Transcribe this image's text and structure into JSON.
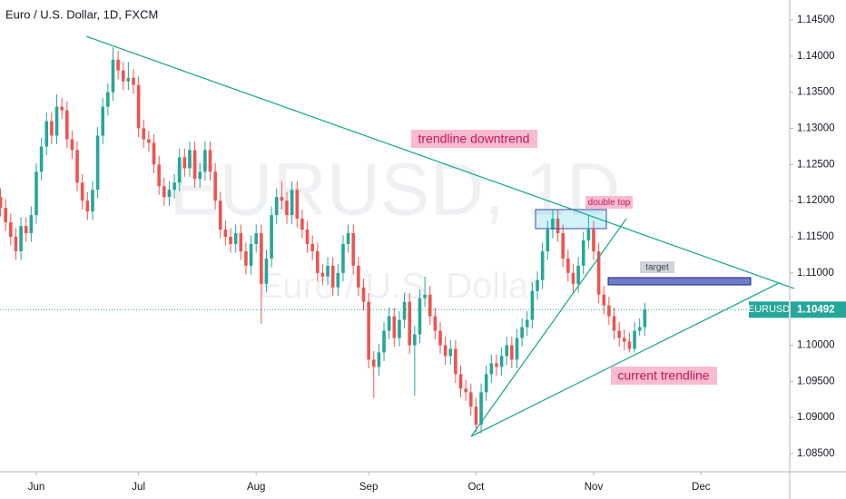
{
  "chart_data": {
    "type": "candlestick",
    "title": "Euro / U.S. Dollar, 1D, FXCM",
    "watermark": "EURUSD, 1D",
    "watermark_subtitle": "Euro / U.S. Dollar",
    "annotations": [
      "trendline downtrend",
      "double top",
      "target",
      "current trendline"
    ],
    "symbol": "EURUSD",
    "current_price": 1.10492,
    "up_color": "#26a69a",
    "down_color": "#ef5350",
    "grid": false,
    "xlim": [
      -0.1,
      154.35
    ],
    "xticks": [
      {
        "value": 7,
        "label": "Jun"
      },
      {
        "value": 27,
        "label": "Jul"
      },
      {
        "value": 50,
        "label": "Aug"
      },
      {
        "value": 72,
        "label": "Sep"
      },
      {
        "value": 93,
        "label": "Oct"
      },
      {
        "value": 116,
        "label": "Nov"
      },
      {
        "value": 137,
        "label": "Dec"
      }
    ],
    "ylim": [
      1.08249,
      1.14776
    ],
    "yticks": [
      {
        "value": 1.085,
        "label": "1.08500"
      },
      {
        "value": 1.09,
        "label": "1.09000"
      },
      {
        "value": 1.095,
        "label": "1.09500"
      },
      {
        "value": 1.1,
        "label": "1.10000"
      },
      {
        "value": 1.105,
        "label": "1.10500"
      },
      {
        "value": 1.11,
        "label": "1.11000"
      },
      {
        "value": 1.115,
        "label": "1.11500"
      },
      {
        "value": 1.12,
        "label": "1.12000"
      },
      {
        "value": 1.125,
        "label": "1.12500"
      },
      {
        "value": 1.13,
        "label": "1.13000"
      },
      {
        "value": 1.135,
        "label": "1.13500"
      },
      {
        "value": 1.14,
        "label": "1.14000"
      },
      {
        "value": 1.145,
        "label": "1.14500"
      }
    ],
    "open": [
      1.1205,
      1.119,
      1.117,
      1.115,
      1.113,
      1.1165,
      1.1155,
      1.118,
      1.124,
      1.1275,
      1.131,
      1.129,
      1.133,
      1.1325,
      1.1285,
      1.127,
      1.1225,
      1.12,
      1.1185,
      1.1215,
      1.129,
      1.133,
      1.135,
      1.1395,
      1.138,
      1.1365,
      1.137,
      1.136,
      1.13,
      1.1285,
      1.128,
      1.125,
      1.122,
      1.1205,
      1.1215,
      1.1225,
      1.126,
      1.1245,
      1.127,
      1.123,
      1.124,
      1.127,
      1.124,
      1.12,
      1.116,
      1.115,
      1.114,
      1.1155,
      1.113,
      1.111,
      1.114,
      1.1155,
      1.1085,
      1.112,
      1.118,
      1.1205,
      1.12,
      1.118,
      1.1215,
      1.1175,
      1.116,
      1.114,
      1.113,
      1.11,
      1.1095,
      1.111,
      1.108,
      1.11,
      1.114,
      1.1155,
      1.111,
      1.108,
      1.106,
      1.098,
      1.097,
      1.099,
      1.102,
      1.104,
      1.101,
      1.1035,
      1.106,
      1.1,
      1.1015,
      1.1065,
      1.107,
      1.104,
      1.102,
      1.1,
      1.0985,
      1.0995,
      1.096,
      1.094,
      1.0935,
      1.0915,
      1.089,
      1.0935,
      1.096,
      1.0975,
      1.097,
      1.0985,
      1.1,
      1.098,
      1.101,
      1.1025,
      1.1035,
      1.1075,
      1.109,
      1.113,
      1.116,
      1.1175,
      1.1155,
      1.112,
      1.11,
      1.1085,
      1.111,
      1.1145,
      1.116,
      1.113,
      1.107,
      1.1055,
      1.104,
      1.102,
      1.101,
      1.1005,
      1.0995,
      1.102,
      1.1025
    ],
    "high": [
      1.1217,
      1.1202,
      1.1182,
      1.1162,
      1.1177,
      1.1177,
      1.1192,
      1.1252,
      1.1287,
      1.1322,
      1.1322,
      1.1347,
      1.1342,
      1.1337,
      1.1297,
      1.1282,
      1.1237,
      1.1212,
      1.1227,
      1.1302,
      1.1342,
      1.1362,
      1.1412,
      1.1407,
      1.1392,
      1.1392,
      1.1382,
      1.1372,
      1.1312,
      1.1297,
      1.1292,
      1.1262,
      1.1232,
      1.1227,
      1.1237,
      1.1272,
      1.1272,
      1.1282,
      1.1282,
      1.1252,
      1.1282,
      1.1282,
      1.1252,
      1.1212,
      1.1172,
      1.1162,
      1.1167,
      1.1167,
      1.1142,
      1.1152,
      1.1167,
      1.1167,
      1.1132,
      1.1192,
      1.1217,
      1.1227,
      1.1212,
      1.1227,
      1.1227,
      1.1187,
      1.1172,
      1.1152,
      1.1142,
      1.1112,
      1.1122,
      1.1122,
      1.1112,
      1.1152,
      1.1167,
      1.1167,
      1.1122,
      1.1092,
      1.1072,
      1.0992,
      1.1002,
      1.1032,
      1.1052,
      1.1052,
      1.1047,
      1.1072,
      1.1072,
      1.1027,
      1.1077,
      1.1095,
      1.1082,
      1.1052,
      1.1032,
      1.1012,
      1.1007,
      1.1007,
      1.0972,
      1.0952,
      1.0947,
      1.0927,
      1.0947,
      1.0972,
      1.0987,
      1.0987,
      1.0997,
      1.1012,
      1.1012,
      1.1022,
      1.1037,
      1.1047,
      1.1087,
      1.1102,
      1.1142,
      1.1172,
      1.1187,
      1.1187,
      1.1167,
      1.1132,
      1.1112,
      1.1122,
      1.1157,
      1.118,
      1.1172,
      1.1142,
      1.1082,
      1.1067,
      1.1052,
      1.1032,
      1.1022,
      1.1017,
      1.1032,
      1.1037,
      1.1059
    ],
    "low": [
      1.1178,
      1.1158,
      1.1138,
      1.1118,
      1.1118,
      1.1143,
      1.1143,
      1.1168,
      1.1228,
      1.1263,
      1.1278,
      1.1278,
      1.1313,
      1.1273,
      1.1258,
      1.1213,
      1.1188,
      1.1173,
      1.1173,
      1.1203,
      1.1278,
      1.1318,
      1.1338,
      1.1368,
      1.1353,
      1.1353,
      1.1348,
      1.1288,
      1.1273,
      1.1268,
      1.1238,
      1.1208,
      1.1193,
      1.1193,
      1.1203,
      1.1213,
      1.1233,
      1.1233,
      1.1218,
      1.1218,
      1.1228,
      1.1228,
      1.1188,
      1.1148,
      1.1138,
      1.1128,
      1.1128,
      1.1118,
      1.1098,
      1.1098,
      1.1128,
      1.103,
      1.1073,
      1.1108,
      1.1168,
      1.1188,
      1.1168,
      1.1168,
      1.1163,
      1.1148,
      1.1128,
      1.1118,
      1.1088,
      1.1083,
      1.1083,
      1.1068,
      1.1068,
      1.1088,
      1.1128,
      1.1098,
      1.1068,
      1.1048,
      1.0968,
      1.0927,
      1.0958,
      1.0978,
      1.1008,
      1.0998,
      1.0998,
      1.1023,
      1.0988,
      1.093,
      1.1003,
      1.1053,
      1.1028,
      1.1008,
      1.0988,
      1.0973,
      1.0973,
      1.0948,
      1.0928,
      1.0923,
      1.0903,
      1.0879,
      1.0878,
      1.0923,
      1.0948,
      1.0958,
      1.0958,
      1.0973,
      1.0968,
      1.0968,
      1.0998,
      1.1013,
      1.1023,
      1.1063,
      1.1078,
      1.1118,
      1.1148,
      1.1143,
      1.1108,
      1.1088,
      1.1073,
      1.1073,
      1.1098,
      1.1133,
      1.1118,
      1.1058,
      1.1043,
      1.1028,
      1.1008,
      1.0998,
      1.0993,
      1.099,
      1.099,
      1.1013,
      1.1013
    ],
    "close": [
      1.119,
      1.117,
      1.115,
      1.113,
      1.1165,
      1.1155,
      1.118,
      1.124,
      1.1275,
      1.131,
      1.129,
      1.133,
      1.1325,
      1.1285,
      1.127,
      1.1225,
      1.12,
      1.1185,
      1.1215,
      1.129,
      1.133,
      1.135,
      1.1395,
      1.138,
      1.1365,
      1.137,
      1.136,
      1.13,
      1.1285,
      1.128,
      1.125,
      1.122,
      1.1205,
      1.1215,
      1.1225,
      1.126,
      1.1245,
      1.127,
      1.123,
      1.124,
      1.127,
      1.124,
      1.12,
      1.116,
      1.115,
      1.114,
      1.1155,
      1.113,
      1.111,
      1.114,
      1.1155,
      1.1085,
      1.112,
      1.118,
      1.1205,
      1.12,
      1.118,
      1.1215,
      1.1175,
      1.116,
      1.114,
      1.113,
      1.11,
      1.1095,
      1.111,
      1.108,
      1.11,
      1.114,
      1.1155,
      1.111,
      1.108,
      1.106,
      1.098,
      1.097,
      1.099,
      1.102,
      1.104,
      1.101,
      1.1035,
      1.106,
      1.1,
      1.1015,
      1.1065,
      1.107,
      1.104,
      1.102,
      1.1,
      1.0985,
      1.0995,
      1.096,
      1.094,
      1.0935,
      1.0915,
      1.089,
      1.0935,
      1.096,
      1.0975,
      1.097,
      1.0985,
      1.1,
      1.098,
      1.101,
      1.1025,
      1.1035,
      1.1075,
      1.109,
      1.113,
      1.116,
      1.1175,
      1.1155,
      1.112,
      1.11,
      1.1085,
      1.111,
      1.1145,
      1.116,
      1.113,
      1.107,
      1.1055,
      1.104,
      1.102,
      1.101,
      1.1005,
      1.0995,
      1.102,
      1.1025,
      1.10492
    ]
  }
}
